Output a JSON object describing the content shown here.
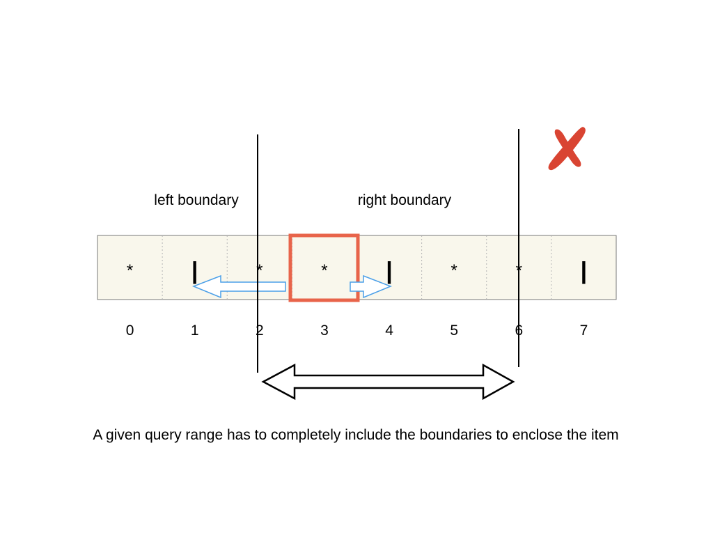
{
  "labels": {
    "left_boundary": "left boundary",
    "right_boundary": "right boundary"
  },
  "cells": [
    {
      "index": "0",
      "symbol": "*"
    },
    {
      "index": "1",
      "symbol": "|"
    },
    {
      "index": "2",
      "symbol": "*"
    },
    {
      "index": "3",
      "symbol": "*"
    },
    {
      "index": "4",
      "symbol": "|"
    },
    {
      "index": "5",
      "symbol": "*"
    },
    {
      "index": "6",
      "symbol": "*"
    },
    {
      "index": "7",
      "symbol": "|"
    }
  ],
  "caption": "A given query range has to completely include the boundaries to enclose the item",
  "colors": {
    "array_fill": "#f9f7ec",
    "highlight": "#e8644a",
    "boundary_arrow": "#4a9fe8",
    "cross_mark": "#d94432"
  },
  "icons": {
    "cross": "cross-mark-icon"
  }
}
